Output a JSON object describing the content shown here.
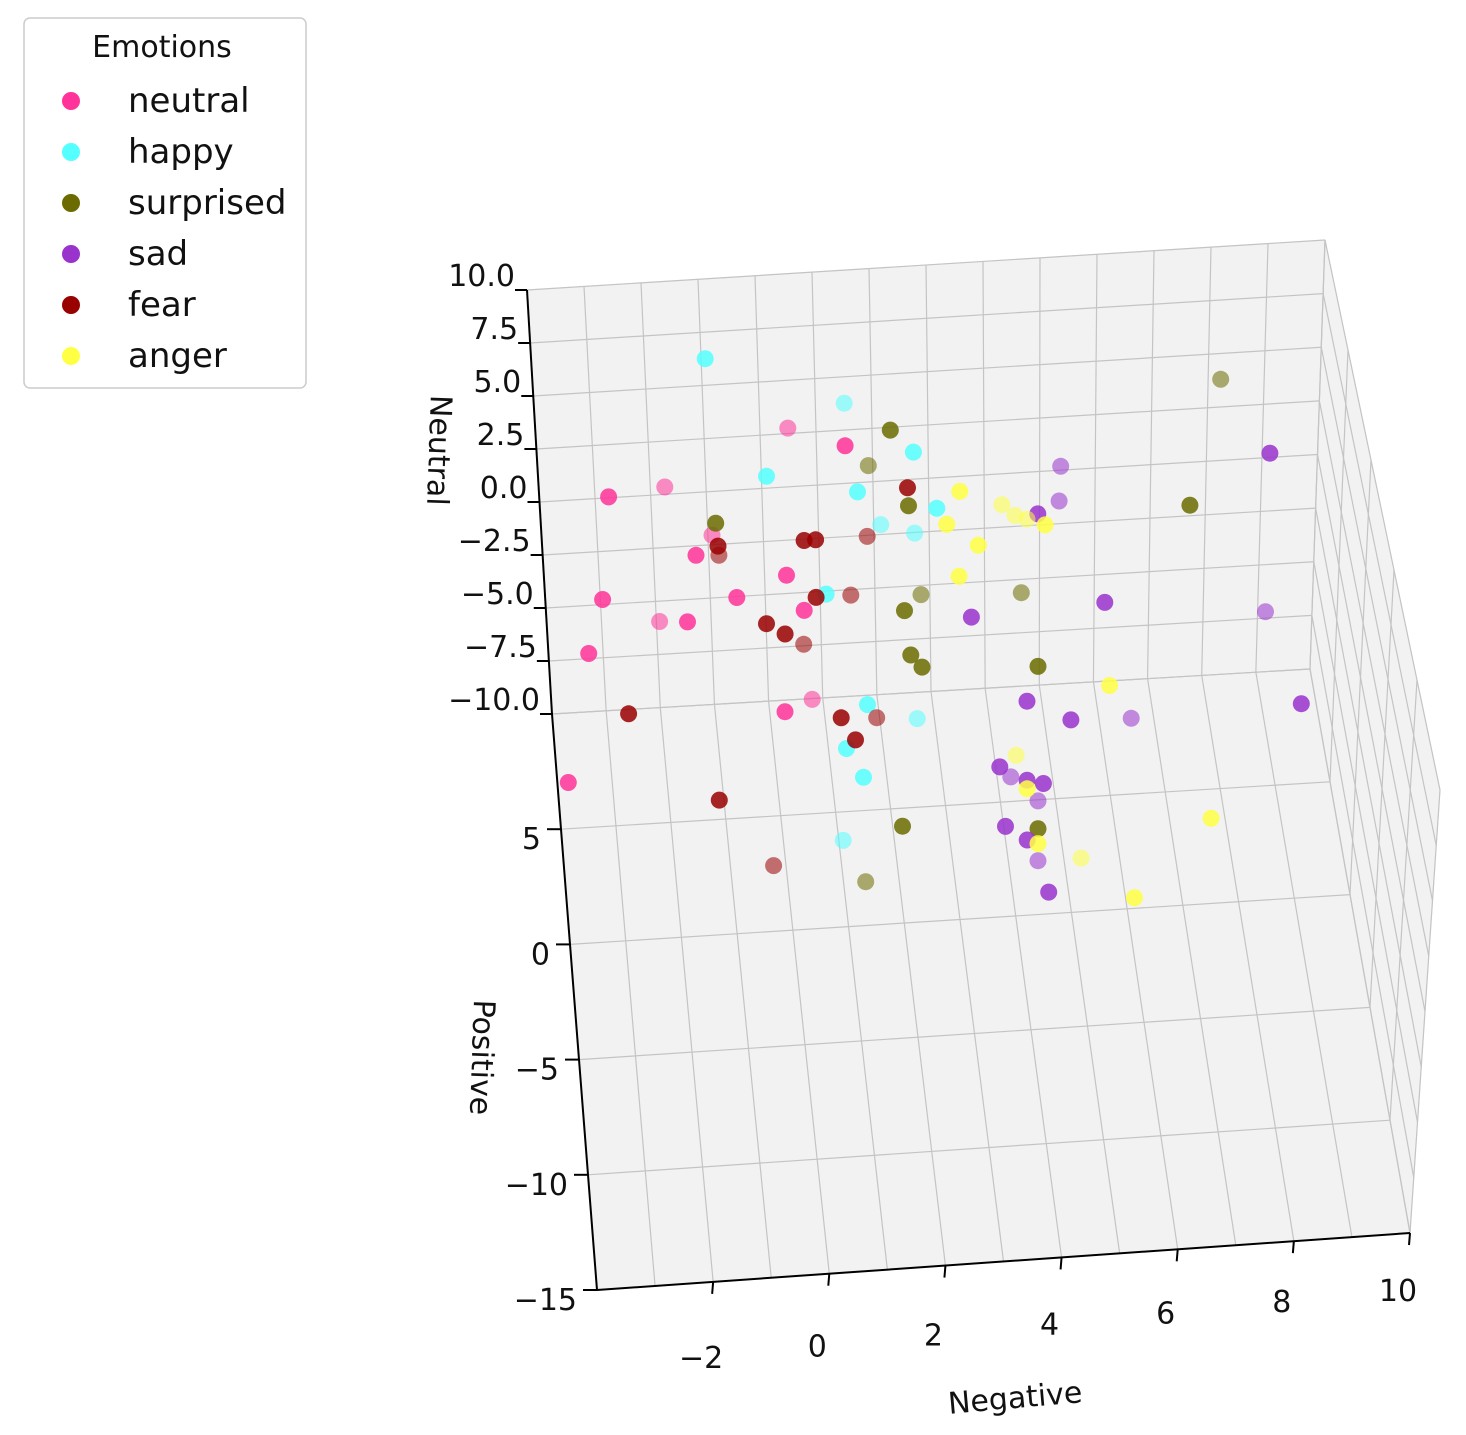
{
  "chart_data": {
    "type": "scatter3d",
    "title": "",
    "xlabel": "Negative",
    "ylabel": "Positive",
    "zlabel": "Neutral",
    "xlim": [
      -4,
      10
    ],
    "ylim": [
      -15,
      10
    ],
    "zlim": [
      -10,
      10
    ],
    "x_ticks": [
      -2,
      0,
      2,
      4,
      6,
      8,
      10
    ],
    "x_tick_labels": [
      "−2",
      "0",
      "2",
      "4",
      "6",
      "8",
      "10"
    ],
    "y_ticks": [
      -15,
      -10,
      -5,
      0,
      5
    ],
    "y_tick_labels": [
      "−15",
      "−10",
      "−5",
      "0",
      "5"
    ],
    "z_ticks": [
      10,
      7.5,
      5,
      2.5,
      0,
      -2.5,
      -5,
      -7.5,
      -10
    ],
    "z_tick_labels": [
      "10.0",
      "7.5",
      "5.0",
      "2.5",
      "0.0",
      "−2.5",
      "−5.0",
      "−7.5",
      "−10.0"
    ],
    "legend_title": "Emotions",
    "legend_position": "top-left",
    "series": [
      {
        "name": "neutral",
        "color": "#ff3399",
        "points": [
          [
            -2.8,
            7,
            3.3
          ],
          [
            -1.8,
            7,
            3.6
          ],
          [
            -3.0,
            7,
            -1.5
          ],
          [
            -3.3,
            7,
            -4.0
          ],
          [
            -2.0,
            7,
            -2.7
          ],
          [
            -1.5,
            7,
            -2.8
          ],
          [
            -0.6,
            7,
            -1.8
          ],
          [
            -1.0,
            7,
            1.2
          ],
          [
            0.3,
            7,
            -0.9
          ],
          [
            0.6,
            7,
            -2.6
          ],
          [
            0.4,
            7,
            6.0
          ],
          [
            1.4,
            7,
            5.0
          ],
          [
            0.2,
            7,
            -7.3
          ],
          [
            0.7,
            7,
            -6.8
          ],
          [
            -3.8,
            7,
            -10.0
          ],
          [
            -1.3,
            7,
            0.3
          ]
        ]
      },
      {
        "name": "happy",
        "color": "#55ffff",
        "points": [
          [
            -1.0,
            7,
            9.5
          ],
          [
            1.4,
            7,
            7.0
          ],
          [
            0.0,
            7,
            3.8
          ],
          [
            1.6,
            7,
            2.8
          ],
          [
            2.0,
            7,
            1.2
          ],
          [
            2.6,
            7,
            4.5
          ],
          [
            3.0,
            7,
            1.8
          ],
          [
            2.6,
            7,
            0.7
          ],
          [
            1.0,
            7,
            -1.9
          ],
          [
            1.7,
            7,
            -7.2
          ],
          [
            2.6,
            7,
            -8.0
          ],
          [
            1.3,
            7,
            -9.2
          ],
          [
            1.6,
            7,
            -10.6
          ],
          [
            1.2,
            7,
            -13.5
          ]
        ]
      },
      {
        "name": "surprised",
        "color": "#6b6b00",
        "points": [
          [
            2.2,
            7,
            5.6
          ],
          [
            1.8,
            7,
            4.0
          ],
          [
            2.5,
            7,
            2.0
          ],
          [
            2.4,
            7,
            -2.9
          ],
          [
            2.7,
            7,
            -2.2
          ],
          [
            2.5,
            7,
            -5.0
          ],
          [
            2.7,
            7,
            -5.6
          ],
          [
            4.5,
            7,
            -2.4
          ],
          [
            4.8,
            7,
            -5.9
          ],
          [
            7.5,
            7,
            1.2
          ],
          [
            8.0,
            7,
            7.0
          ],
          [
            2.3,
            7,
            -13.0
          ],
          [
            4.8,
            7,
            -13.5
          ],
          [
            1.6,
            7,
            -15.5
          ],
          [
            -1.0,
            4.0,
            5
          ]
        ]
      },
      {
        "name": "sad",
        "color": "#9933cc",
        "points": [
          [
            3.6,
            7,
            -3.4
          ],
          [
            5.2,
            7,
            3.4
          ],
          [
            6.0,
            7,
            -3.1
          ],
          [
            8.9,
            7,
            3.4
          ],
          [
            8.9,
            7,
            -4.0
          ],
          [
            4.6,
            7,
            -7.5
          ],
          [
            5.4,
            7,
            -8.5
          ],
          [
            6.5,
            7,
            -8.6
          ],
          [
            9.6,
            7,
            -8.4
          ],
          [
            4.1,
            7,
            -10.5
          ],
          [
            4.3,
            7,
            -11.0
          ],
          [
            4.6,
            7,
            -11.2
          ],
          [
            4.9,
            7,
            -11.4
          ],
          [
            4.8,
            7,
            -12.2
          ],
          [
            4.2,
            7,
            -13.3
          ],
          [
            4.6,
            7,
            -14.0
          ],
          [
            4.8,
            7,
            -15.0
          ],
          [
            5.0,
            7,
            -16.5
          ],
          [
            4.6,
            3.5,
            5
          ],
          [
            5.0,
            4.0,
            5
          ]
        ]
      },
      {
        "name": "fear",
        "color": "#990000",
        "points": [
          [
            -1.0,
            3.0,
            5
          ],
          [
            -1.0,
            2.6,
            5
          ],
          [
            0.5,
            3.0,
            5
          ],
          [
            0.7,
            3.0,
            5
          ],
          [
            1.6,
            3.0,
            5
          ],
          [
            2.4,
            5.0,
            5
          ],
          [
            0.6,
            0.5,
            5
          ],
          [
            1.2,
            0.5,
            5
          ],
          [
            -0.3,
            -0.5,
            5
          ],
          [
            0.0,
            -1.0,
            5
          ],
          [
            0.3,
            -1.5,
            5
          ],
          [
            -2.8,
            -4.0,
            5
          ],
          [
            0.8,
            -4.8,
            5
          ],
          [
            1.4,
            -4.9,
            5
          ],
          [
            1.0,
            -5.8,
            5
          ],
          [
            -1.4,
            -8.0,
            5
          ],
          [
            -0.6,
            -11.0,
            5
          ]
        ]
      },
      {
        "name": "anger",
        "color": "#ffff44",
        "points": [
          [
            6.1,
            7,
            -7.0
          ],
          [
            4.4,
            7,
            -10.0
          ],
          [
            4.6,
            7,
            -11.6
          ],
          [
            4.8,
            7,
            -14.2
          ],
          [
            5.6,
            7,
            -15.0
          ],
          [
            8.0,
            7,
            -13.5
          ],
          [
            6.6,
            7,
            -17.0
          ],
          [
            4.0,
            4.0,
            5
          ],
          [
            3.3,
            4.7,
            5
          ],
          [
            3.0,
            3.3,
            5
          ],
          [
            4.2,
            3.5,
            5
          ],
          [
            3.5,
            2.3,
            5
          ],
          [
            3.1,
            1.0,
            5
          ],
          [
            4.4,
            3.3,
            5
          ],
          [
            4.7,
            3.0,
            5
          ]
        ]
      }
    ]
  }
}
